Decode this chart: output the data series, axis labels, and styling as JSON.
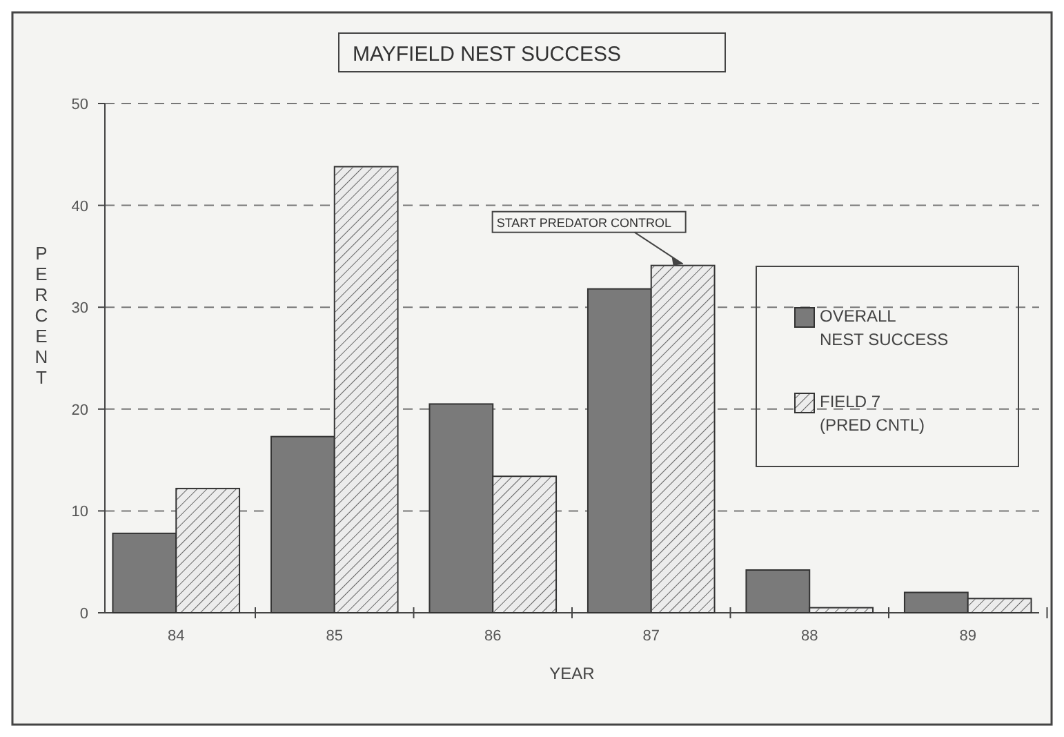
{
  "chart_data": {
    "type": "bar",
    "title": "MAYFIELD NEST SUCCESS",
    "xlabel": "YEAR",
    "ylabel": "PERCENT",
    "categories": [
      "84",
      "85",
      "86",
      "87",
      "88",
      "89"
    ],
    "series": [
      {
        "name": "OVERALL\nNEST SUCCESS",
        "color": "#7a7a7a",
        "values": [
          7.8,
          17.3,
          20.5,
          31.8,
          4.2,
          2.0
        ]
      },
      {
        "name": "FIELD 7\n(PRED CNTL)",
        "color": "#ececec",
        "values": [
          12.2,
          43.8,
          13.4,
          34.1,
          0.5,
          1.4
        ]
      }
    ],
    "ylim": [
      0,
      50
    ],
    "yticks": [
      0,
      10,
      20,
      30,
      40,
      50
    ],
    "grid": "y",
    "legend": "right",
    "annotations": [
      {
        "text": "START PREDATOR CONTROL",
        "x": "87",
        "y": 34.1
      }
    ]
  }
}
